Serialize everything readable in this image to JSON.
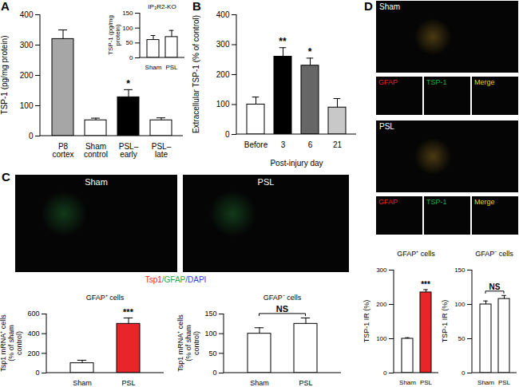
{
  "chart_data": [
    {
      "type": "bar",
      "panel": "A",
      "y_label": "TSP-1 (pg/mg protein)",
      "categories": [
        "P8 cortex",
        "Sham control",
        "PSL–early",
        "PSL–late"
      ],
      "values": [
        320,
        52,
        128,
        52
      ],
      "errors": [
        30,
        7,
        25,
        8
      ],
      "colors": [
        "#a6a6a6",
        "#ffffff",
        "#000000",
        "#ffffff"
      ],
      "ylim": [
        0,
        400
      ],
      "yticks": [
        0,
        100,
        200,
        300,
        400
      ],
      "annotations": [
        {
          "categories": [
            "PSL–early"
          ],
          "text": "*"
        }
      ]
    },
    {
      "type": "bar",
      "title": "IP₃R2-KO",
      "y_label": "TSP-1 (pg/mg protein)",
      "categories": [
        "Sham",
        "PSL"
      ],
      "values": [
        60,
        70
      ],
      "errors": [
        15,
        22
      ],
      "colors": [
        "#ffffff",
        "#ffffff"
      ],
      "ylim": [
        0,
        150
      ],
      "yticks": [
        0,
        50,
        100,
        150
      ]
    },
    {
      "type": "bar",
      "panel": "B",
      "x_label": "Post-injury day",
      "y_label": "Extracellular TSP-1 (% of control)",
      "categories": [
        "Before",
        "3",
        "6",
        "21"
      ],
      "values": [
        100,
        260,
        230,
        90
      ],
      "errors": [
        25,
        30,
        25,
        30
      ],
      "colors": [
        "#ffffff",
        "#000000",
        "#666666",
        "#c8c8c8"
      ],
      "ylim": [
        0,
        400
      ],
      "yticks": [
        0,
        100,
        200,
        300,
        400
      ],
      "annotations": [
        {
          "categories": [
            "3"
          ],
          "text": "**"
        },
        {
          "categories": [
            "6"
          ],
          "text": "*"
        }
      ]
    },
    {
      "type": "bar",
      "title": "GFAP⁺ cells",
      "y_label": "Tsp1 mRNA⁺ cells (% of sham control)",
      "categories": [
        "Sham",
        "PSL"
      ],
      "values": [
        100,
        500
      ],
      "errors": [
        30,
        60
      ],
      "colors": [
        "#ffffff",
        "#e8262a"
      ],
      "ylim": [
        0,
        600
      ],
      "yticks": [
        0,
        200,
        400,
        600
      ],
      "annotations": [
        {
          "categories": [
            "PSL"
          ],
          "text": "***"
        }
      ]
    },
    {
      "type": "bar",
      "title": "GFAP⁻ cells",
      "y_label": "Tsp1 mRNA⁺ cells (% of sham control)",
      "categories": [
        "Sham",
        "PSL"
      ],
      "values": [
        100,
        125
      ],
      "errors": [
        15,
        15
      ],
      "colors": [
        "#ffffff",
        "#ffffff"
      ],
      "ylim": [
        0,
        150
      ],
      "yticks": [
        0,
        50,
        100,
        150
      ],
      "annotations": [
        {
          "categories": [
            "Sham",
            "PSL"
          ],
          "text": "NS"
        }
      ]
    },
    {
      "type": "bar",
      "title": "GFAP⁺ cells",
      "y_label": "TSP-1 IR (%)",
      "categories": [
        "Sham",
        "PSL"
      ],
      "values": [
        100,
        235
      ],
      "errors": [
        3,
        8
      ],
      "colors": [
        "#ffffff",
        "#e8262a"
      ],
      "ylim": [
        0,
        300
      ],
      "yticks": [
        0,
        100,
        200,
        300
      ],
      "annotations": [
        {
          "categories": [
            "PSL"
          ],
          "text": "***"
        }
      ]
    },
    {
      "type": "bar",
      "title": "GFAP⁻ cells",
      "y_label": "TSP-1 IR (%)",
      "categories": [
        "Sham",
        "PSL"
      ],
      "values": [
        100,
        108
      ],
      "errors": [
        5,
        5
      ],
      "colors": [
        "#ffffff",
        "#ffffff"
      ],
      "ylim": [
        0,
        150
      ],
      "yticks": [
        0,
        50,
        100,
        150
      ],
      "annotations": [
        {
          "categories": [
            "Sham",
            "PSL"
          ],
          "text": "NS"
        }
      ]
    }
  ],
  "images": {
    "C": {
      "panel": "C",
      "panels": [
        "Sham",
        "PSL"
      ],
      "caption": [
        {
          "text": "Tsp1",
          "color": "#e8262a"
        },
        {
          "text": "/GFAP",
          "color": "#2aa84a"
        },
        {
          "text": "/DAPI",
          "color": "#2a3fd6"
        }
      ]
    },
    "D": {
      "panel": "D",
      "panels": [
        {
          "label": "Sham",
          "channels": [
            {
              "text": "GFAP",
              "color": "#e8262a"
            },
            {
              "text": "TSP-1",
              "color": "#2aa84a"
            },
            {
              "text": "Merge",
              "color": "#e8d42a"
            }
          ]
        },
        {
          "label": "PSL",
          "channels": [
            {
              "text": "GFAP",
              "color": "#e8262a"
            },
            {
              "text": "TSP-1",
              "color": "#2aa84a"
            },
            {
              "text": "Merge",
              "color": "#e8d42a"
            }
          ]
        }
      ]
    }
  }
}
